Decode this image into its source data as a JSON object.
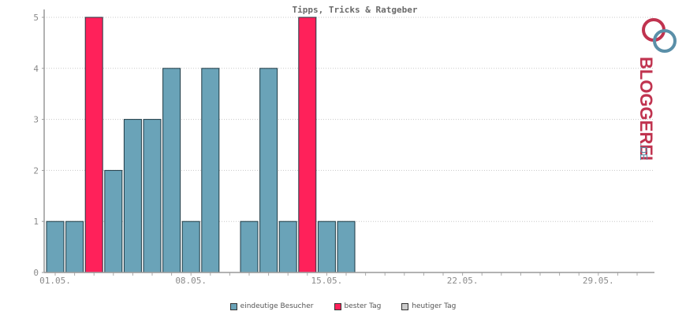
{
  "chart_data": {
    "type": "bar",
    "title": "Tipps, Tricks & Ratgeber",
    "xlabel": "",
    "ylabel": "",
    "ylim": [
      0,
      5
    ],
    "yticks": [
      "0",
      "1",
      "2",
      "3",
      "4",
      "5"
    ],
    "xtick_labels": [
      {
        "day": 1,
        "label": "01.05."
      },
      {
        "day": 8,
        "label": "08.05."
      },
      {
        "day": 15,
        "label": "15.05."
      },
      {
        "day": 22,
        "label": "22.05."
      },
      {
        "day": 29,
        "label": "29.05."
      }
    ],
    "days": 31,
    "series": [
      {
        "name": "eindeutige Besucher",
        "color": "#6aa3b8",
        "values": [
          1,
          1,
          5,
          2,
          3,
          3,
          4,
          1,
          4,
          0,
          1,
          4,
          1,
          5,
          1,
          1,
          0,
          0,
          0,
          0,
          0,
          0,
          0,
          0,
          0,
          0,
          0,
          0,
          0,
          0,
          0
        ]
      }
    ],
    "best_days": [
      3,
      14
    ],
    "best_color": "#ff215a",
    "today_color": "#cccccc",
    "grid": true
  },
  "legend": [
    {
      "label": "eindeutige Besucher",
      "color": "#6aa3b8"
    },
    {
      "label": "bester Tag",
      "color": "#ff215a"
    },
    {
      "label": "heutiger Tag",
      "color": "#cccccc"
    }
  ],
  "logo": {
    "text": "BLOGGEREI",
    "suffix": ".DE",
    "color_main": "#c0334f",
    "color_accent": "#5a8fa8"
  }
}
